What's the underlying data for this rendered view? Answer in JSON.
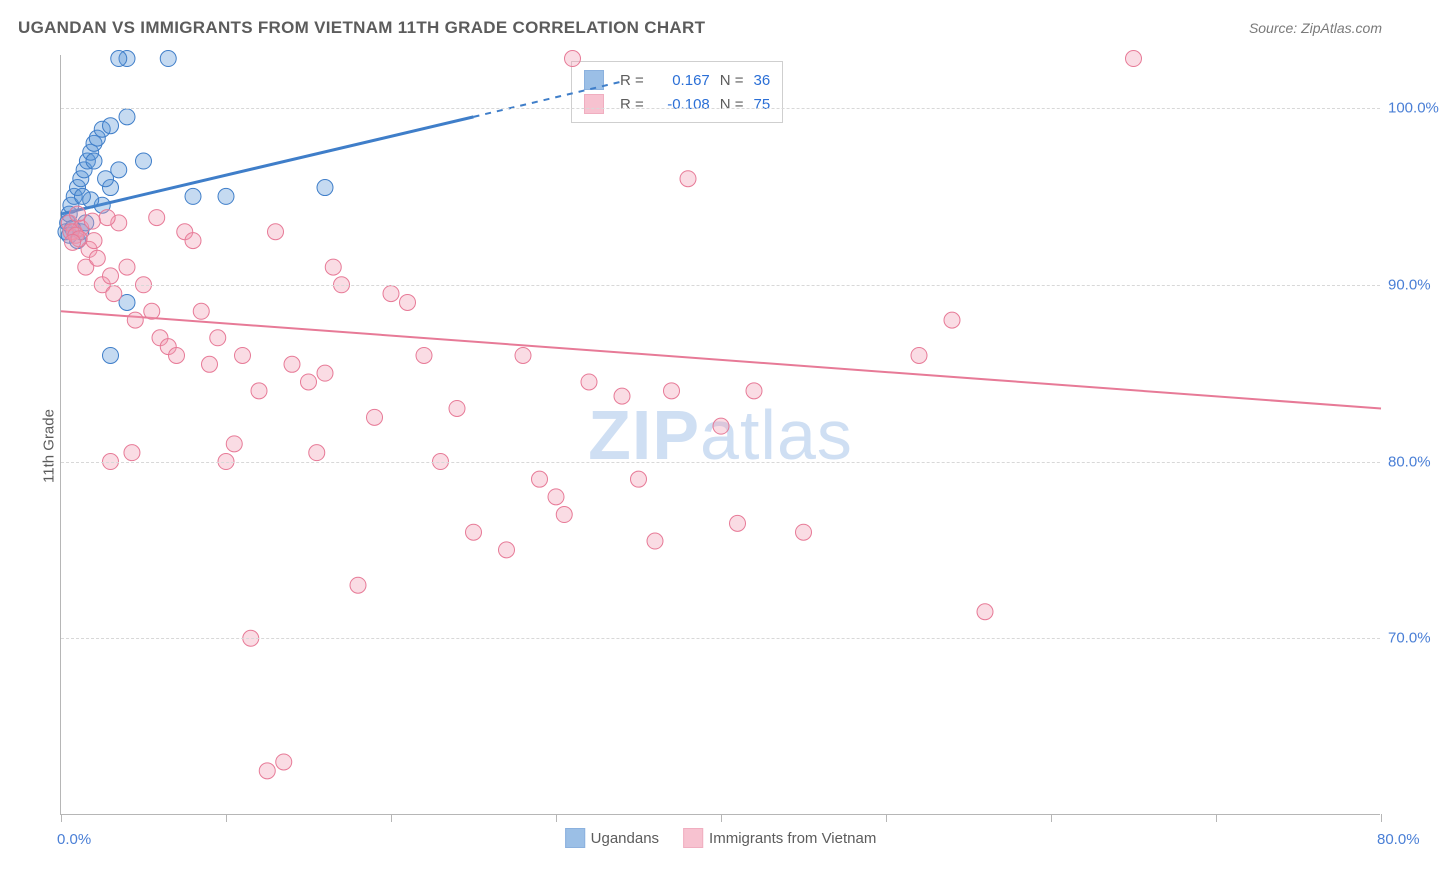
{
  "title": "UGANDAN VS IMMIGRANTS FROM VIETNAM 11TH GRADE CORRELATION CHART",
  "source_label": "Source: ZipAtlas.com",
  "y_axis_label": "11th Grade",
  "watermark": {
    "bold": "ZIP",
    "rest": "atlas"
  },
  "chart": {
    "type": "scatter",
    "background_color": "#ffffff",
    "grid_color": "#d8d8d8",
    "axis_color": "#b6b6b6",
    "label_color": "#4a7fd6",
    "text_color": "#5c5c5c",
    "font_size_labels": 15,
    "font_size_title": 17,
    "xlim": [
      0,
      80
    ],
    "ylim": [
      60,
      103
    ],
    "x_ticks": [
      0,
      10,
      20,
      30,
      40,
      50,
      60,
      70,
      80
    ],
    "x_tick_labels": {
      "0": "0.0%",
      "80": "80.0%"
    },
    "y_ticks": [
      70,
      80,
      90,
      100
    ],
    "y_tick_labels": [
      "70.0%",
      "80.0%",
      "90.0%",
      "100.0%"
    ],
    "marker_radius": 8,
    "marker_stroke_width": 1,
    "marker_fill_opacity": 0.35,
    "series": [
      {
        "name": "Ugandans",
        "color": "#5a95d6",
        "stroke": "#3f7ec9",
        "r": 0.167,
        "n": 36,
        "trend": {
          "x1": 0,
          "y1": 94,
          "x2": 25,
          "y2": 99.5,
          "solid_end_x": 25,
          "dash_end_x": 34,
          "dash_y": 101.5,
          "width": 3
        },
        "points": [
          [
            0.3,
            93
          ],
          [
            0.4,
            93.5
          ],
          [
            0.5,
            94
          ],
          [
            0.6,
            94.5
          ],
          [
            0.8,
            95
          ],
          [
            1,
            95.5
          ],
          [
            1.2,
            96
          ],
          [
            1.4,
            96.5
          ],
          [
            1.6,
            97
          ],
          [
            1.8,
            97.5
          ],
          [
            2,
            98
          ],
          [
            2.2,
            98.3
          ],
          [
            2.5,
            98.8
          ],
          [
            3,
            99
          ],
          [
            4,
            102.8
          ],
          [
            6.5,
            102.8
          ],
          [
            3.5,
            102.8
          ],
          [
            2,
            97
          ],
          [
            1,
            92.5
          ],
          [
            1.2,
            93
          ],
          [
            1.5,
            93.5
          ],
          [
            2.5,
            94.5
          ],
          [
            3,
            95.5
          ],
          [
            4,
            99.5
          ],
          [
            5,
            97
          ],
          [
            8,
            95
          ],
          [
            10,
            95
          ],
          [
            16,
            95.5
          ],
          [
            4,
            89
          ],
          [
            3,
            86
          ],
          [
            3.5,
            96.5
          ],
          [
            2.7,
            96
          ],
          [
            1.8,
            94.8
          ],
          [
            0.7,
            93.2
          ],
          [
            0.5,
            92.8
          ],
          [
            1.3,
            95
          ]
        ]
      },
      {
        "name": "Immigrants from Vietnam",
        "color": "#f29bb1",
        "stroke": "#e77a97",
        "r": -0.108,
        "n": 75,
        "trend": {
          "x1": 0,
          "y1": 88.5,
          "x2": 80,
          "y2": 83,
          "width": 2
        },
        "points": [
          [
            0.5,
            93.5
          ],
          [
            0.8,
            93
          ],
          [
            1,
            94
          ],
          [
            1.2,
            93.2
          ],
          [
            1.5,
            91
          ],
          [
            1.7,
            92
          ],
          [
            2,
            92.5
          ],
          [
            2.2,
            91.5
          ],
          [
            2.5,
            90
          ],
          [
            3,
            90.5
          ],
          [
            3.2,
            89.5
          ],
          [
            3.5,
            93.5
          ],
          [
            4,
            91
          ],
          [
            4.5,
            88
          ],
          [
            5,
            90
          ],
          [
            5.5,
            88.5
          ],
          [
            6,
            87
          ],
          [
            6.5,
            86.5
          ],
          [
            7,
            86
          ],
          [
            7.5,
            93
          ],
          [
            8,
            92.5
          ],
          [
            8.5,
            88.5
          ],
          [
            9,
            85.5
          ],
          [
            9.5,
            87
          ],
          [
            10,
            80
          ],
          [
            10.5,
            81
          ],
          [
            11,
            86
          ],
          [
            11.5,
            70
          ],
          [
            12,
            84
          ],
          [
            12.5,
            62.5
          ],
          [
            13,
            93
          ],
          [
            13.5,
            63
          ],
          [
            14,
            85.5
          ],
          [
            15,
            84.5
          ],
          [
            15.5,
            80.5
          ],
          [
            16,
            85
          ],
          [
            16.5,
            91
          ],
          [
            17,
            90
          ],
          [
            18,
            73
          ],
          [
            19,
            82.5
          ],
          [
            20,
            89.5
          ],
          [
            21,
            89
          ],
          [
            22,
            86
          ],
          [
            23,
            80
          ],
          [
            24,
            83
          ],
          [
            25,
            76
          ],
          [
            27,
            75
          ],
          [
            28,
            86
          ],
          [
            29,
            79
          ],
          [
            30,
            78
          ],
          [
            30.5,
            77
          ],
          [
            31,
            102.8
          ],
          [
            32,
            84.5
          ],
          [
            34,
            83.7
          ],
          [
            35,
            79
          ],
          [
            36,
            75.5
          ],
          [
            37,
            84
          ],
          [
            38,
            96
          ],
          [
            40,
            82
          ],
          [
            41,
            76.5
          ],
          [
            42,
            84
          ],
          [
            45,
            76
          ],
          [
            52,
            86
          ],
          [
            54,
            88
          ],
          [
            56,
            71.5
          ],
          [
            65,
            102.8
          ],
          [
            3,
            80
          ],
          [
            4.3,
            80.5
          ],
          [
            5.8,
            93.8
          ],
          [
            2.8,
            93.8
          ],
          [
            1.9,
            93.6
          ],
          [
            0.6,
            93.0
          ],
          [
            0.9,
            92.8
          ],
          [
            1.1,
            92.6
          ],
          [
            0.7,
            92.4
          ]
        ]
      }
    ]
  },
  "stats_box": {
    "r_label": "R =",
    "n_label": "N ="
  },
  "legend_bottom": {
    "series1_label": "Ugandans",
    "series2_label": "Immigrants from Vietnam"
  }
}
